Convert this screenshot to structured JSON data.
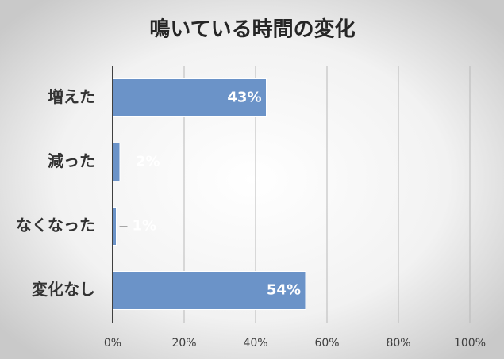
{
  "chart_data": {
    "type": "bar",
    "orientation": "horizontal",
    "title": "鳴いている時間の変化",
    "categories": [
      "増えた",
      "減った",
      "なくなった",
      "変化なし"
    ],
    "values": [
      43,
      2,
      1,
      54
    ],
    "value_labels": [
      "43%",
      "2%",
      "1%",
      "54%"
    ],
    "color": "#6b93c8",
    "xlim": [
      0,
      100
    ],
    "xticks": [
      {
        "value": 0,
        "label": "0%"
      },
      {
        "value": 20,
        "label": "20%"
      },
      {
        "value": 40,
        "label": "40%"
      },
      {
        "value": 60,
        "label": "60%"
      },
      {
        "value": 80,
        "label": "80%"
      },
      {
        "value": 100,
        "label": "100%"
      }
    ],
    "grid": true
  }
}
